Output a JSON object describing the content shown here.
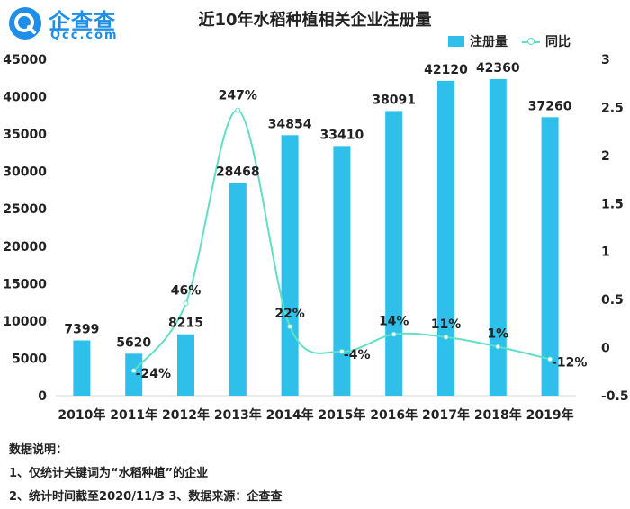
{
  "logo": {
    "main": "企查查",
    "sub": "Qcc.com"
  },
  "chart_data": {
    "type": "bar",
    "title": "近10年水稻种植相关企业注册量",
    "categories": [
      "2010年",
      "2011年",
      "2012年",
      "2013年",
      "2014年",
      "2015年",
      "2016年",
      "2017年",
      "2018年",
      "2019年"
    ],
    "series": [
      {
        "name": "注册量",
        "type": "bar",
        "axis": "left",
        "values": [
          7399,
          5620,
          8215,
          28468,
          34854,
          33410,
          38091,
          42120,
          42360,
          37260
        ],
        "labels": [
          "7399",
          "5620",
          "8215",
          "28468",
          "34854",
          "33410",
          "38091",
          "42120",
          "42360",
          "37260"
        ]
      },
      {
        "name": "同比",
        "type": "line",
        "axis": "right",
        "values": [
          null,
          -0.24,
          0.46,
          2.47,
          0.22,
          -0.04,
          0.14,
          0.11,
          0.01,
          -0.12
        ],
        "labels": [
          "",
          "-24%",
          "46%",
          "247%",
          "22%",
          "-4%",
          "14%",
          "11%",
          "1%",
          "-12%"
        ]
      }
    ],
    "y_left": {
      "min": 0,
      "max": 45000,
      "ticks": [
        "0",
        "5000",
        "10000",
        "15000",
        "20000",
        "25000",
        "30000",
        "35000",
        "40000",
        "45000"
      ]
    },
    "y_right": {
      "min": -0.5,
      "max": 3,
      "ticks": [
        "-0.5",
        "0",
        "0.5",
        "1",
        "1.5",
        "2",
        "2.5",
        "3"
      ]
    },
    "legend_position": "top-right",
    "grid": false,
    "colors": {
      "bar": "#2ec0ea",
      "line": "#5fe0c4"
    }
  },
  "notes": {
    "heading": "数据说明：",
    "line1": "1、仅统计关键词为“水稻种植”的企业",
    "line2": "2、统计时间截至2020/11/3   3、数据来源：企查查"
  }
}
